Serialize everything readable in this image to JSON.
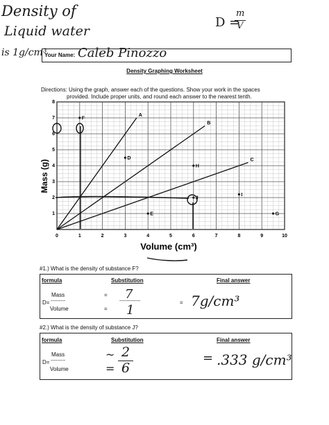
{
  "handwriting": {
    "note_line1": "Density of",
    "note_line2": "Liquid water",
    "note_line3": "is 1g/cm³",
    "formula_left": "D =",
    "formula_num": "m",
    "formula_den": "V",
    "student_name": "Caleb Pinozzo",
    "q1_sub_top": "7",
    "q1_sub_bottom": "1",
    "q1_answer": "7g/cm³",
    "q2_sub_top": "2",
    "q2_sub_bottom": "6",
    "q2_answer": ".333 g/cm³"
  },
  "header": {
    "name_label": "Your Name:",
    "title": "Density Graphing Worksheet",
    "directions": "Directions: Using the graph, answer each of the questions.  Show your work in the spaces",
    "directions_line2": "provided.  Include proper units, and round each answer to the nearest tenth."
  },
  "chart_data": {
    "type": "scatter",
    "xlabel": "Volume (cm³)",
    "ylabel": "Mass (g)",
    "xlim": [
      0,
      10
    ],
    "ylim": [
      0,
      8
    ],
    "x_ticks": [
      "0",
      "1",
      "2",
      "3",
      "4",
      "5",
      "6",
      "7",
      "8",
      "9",
      "10"
    ],
    "y_ticks": [
      "1",
      "2",
      "3",
      "4",
      "5",
      "6",
      "7",
      "8"
    ],
    "grid": true,
    "lines": [
      {
        "name": "A",
        "x": [
          0,
          3.5
        ],
        "y": [
          0,
          7
        ]
      },
      {
        "name": "B",
        "x": [
          0,
          6.5
        ],
        "y": [
          0,
          6.5
        ]
      },
      {
        "name": "C",
        "x": [
          0,
          8.4
        ],
        "y": [
          0,
          4.2
        ]
      }
    ],
    "points": [
      {
        "name": "F",
        "x": 1,
        "y": 7
      },
      {
        "name": "D",
        "x": 3,
        "y": 4.5
      },
      {
        "name": "H",
        "x": 6,
        "y": 4
      },
      {
        "name": "I",
        "x": 8,
        "y": 2.2
      },
      {
        "name": "J",
        "x": 6,
        "y": 2
      },
      {
        "name": "E",
        "x": 4,
        "y": 1
      },
      {
        "name": "G",
        "x": 9.5,
        "y": 1
      }
    ]
  },
  "questions": [
    {
      "prompt": "#1.) What is the density of substance F?",
      "col_formula": "formula",
      "col_substitution": "Substitution",
      "col_final": "Final answer",
      "mass": "Mass",
      "d_eq": "D=",
      "dashes": "---------",
      "volume": "Volume",
      "eq": "=",
      "sub_dashes": "-------------"
    },
    {
      "prompt": "#2.) What is the density of substance J?",
      "col_formula": "formula",
      "col_substitution": "Substitution",
      "col_final": "Final answer",
      "mass": "Mass",
      "d_eq": "D=",
      "dashes": "---------",
      "volume": "Volume",
      "eq": "=",
      "sub_dashes": ""
    }
  ]
}
